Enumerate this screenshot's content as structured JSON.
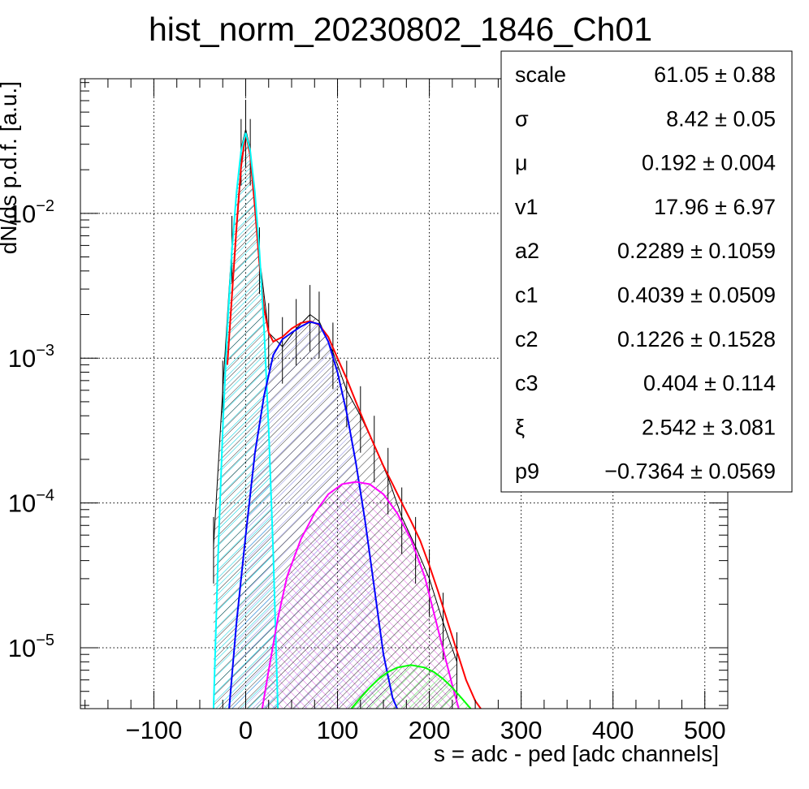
{
  "chart_data": {
    "type": "line",
    "title": "hist_norm_20230802_1846_Ch01",
    "xlabel": "s = adc - ped [adc channels]",
    "ylabel": "dN/ds p.d.f. [a.u.]",
    "xlim": [
      -180,
      525
    ],
    "ylim": [
      3.8e-06,
      0.085
    ],
    "yscale": "log",
    "grid": true,
    "x_ticks": [
      -100,
      0,
      100,
      200,
      300,
      400,
      500
    ],
    "x_tick_labels": [
      "−100",
      "0",
      "100",
      "200",
      "300",
      "400",
      "500"
    ],
    "y_ticks": [
      {
        "value": 1e-05,
        "base": "10",
        "exp": "−5"
      },
      {
        "value": 0.0001,
        "base": "10",
        "exp": "−4"
      },
      {
        "value": 0.001,
        "base": "10",
        "exp": "−3"
      },
      {
        "value": 0.01,
        "base": "10",
        "exp": "−2"
      }
    ],
    "stats_box": {
      "position": "top-right",
      "rows": [
        {
          "name": "scale",
          "value": "61.05 ± 0.88"
        },
        {
          "name": "σ",
          "value": "8.42 ± 0.05"
        },
        {
          "name": "μ",
          "value": "0.192 ± 0.004"
        },
        {
          "name": "v1",
          "value": "17.96 ± 6.97"
        },
        {
          "name": "a2",
          "value": "0.2289 ± 0.1059"
        },
        {
          "name": "c1",
          "value": "0.4039 ± 0.0509"
        },
        {
          "name": "c2",
          "value": "0.1226 ± 0.1528"
        },
        {
          "name": "c3",
          "value": "0.404 ± 0.114"
        },
        {
          "name": "ξ",
          "value": "2.542 ± 3.081"
        },
        {
          "name": "p9",
          "value": "−0.7364 ± 0.0569"
        }
      ]
    },
    "series": [
      {
        "color": "#000000",
        "style": "histogram-errors",
        "x": [
          -35,
          -25,
          -15,
          -5,
          0,
          5,
          15,
          25,
          40,
          55,
          70,
          80,
          95,
          110,
          125,
          140,
          155,
          170,
          185,
          200,
          215,
          230
        ],
        "values": [
          5e-05,
          0.0006,
          0.006,
          0.028,
          0.038,
          0.028,
          0.005,
          0.0015,
          0.0012,
          0.0016,
          0.002,
          0.0018,
          0.0011,
          0.0006,
          0.0004,
          0.00025,
          0.00015,
          8e-05,
          5e-05,
          3e-05,
          1.5e-05,
          8e-06
        ]
      },
      {
        "color": "#ff0000",
        "style": "line",
        "x": [
          -20,
          -10,
          -5,
          0,
          5,
          10,
          15,
          20,
          25,
          30,
          40,
          50,
          60,
          70,
          80,
          90,
          100,
          110,
          120,
          130,
          140,
          150,
          160,
          170,
          180,
          190,
          200,
          210,
          220,
          230,
          240,
          250,
          256
        ],
        "values": [
          0.0009,
          0.008,
          0.021,
          0.036,
          0.025,
          0.011,
          0.0045,
          0.0022,
          0.0015,
          0.0013,
          0.0014,
          0.0016,
          0.00175,
          0.0018,
          0.0017,
          0.0014,
          0.001,
          0.00072,
          0.0005,
          0.00035,
          0.00025,
          0.00018,
          0.000135,
          0.0001,
          7.5e-05,
          5.5e-05,
          3.7e-05,
          2.4e-05,
          1.5e-05,
          9.5e-06,
          6e-06,
          4.3e-06,
          3.8e-06
        ]
      },
      {
        "color": "#00ffff",
        "style": "filled-line",
        "x": [
          -35,
          -30,
          -25,
          -20,
          -15,
          -10,
          -5,
          0,
          5,
          10,
          15,
          20,
          25,
          30,
          35
        ],
        "values": [
          3.8e-06,
          4.5e-05,
          0.00032,
          0.0016,
          0.0055,
          0.014,
          0.027,
          0.036,
          0.027,
          0.014,
          0.0055,
          0.0016,
          0.00032,
          4.5e-05,
          3.8e-06
        ]
      },
      {
        "color": "#0000ff",
        "style": "filled-line",
        "x": [
          -18,
          -10,
          0,
          10,
          20,
          30,
          40,
          50,
          60,
          70,
          80,
          90,
          100,
          110,
          120,
          130,
          140,
          150,
          160,
          165
        ],
        "values": [
          3.8e-06,
          1.5e-05,
          6e-05,
          0.00022,
          0.00055,
          0.00105,
          0.00135,
          0.0015,
          0.00165,
          0.00178,
          0.00172,
          0.0013,
          0.0008,
          0.00042,
          0.00019,
          7.5e-05,
          2.6e-05,
          9e-06,
          4.5e-06,
          3.8e-06
        ]
      },
      {
        "color": "#ff00ff",
        "style": "filled-line",
        "x": [
          18,
          25,
          35,
          45,
          60,
          75,
          90,
          105,
          120,
          135,
          150,
          165,
          180,
          195,
          210,
          225,
          232
        ],
        "values": [
          3.8e-06,
          7e-06,
          1.6e-05,
          3.1e-05,
          5.6e-05,
          8.5e-05,
          0.000115,
          0.000135,
          0.00014,
          0.000135,
          0.000115,
          8.5e-05,
          5.6e-05,
          3.1e-05,
          1.3e-05,
          5.5e-06,
          3.8e-06
        ]
      },
      {
        "color": "#00ff00",
        "style": "filled-line",
        "x": [
          115,
          125,
          135,
          145,
          155,
          165,
          180,
          195,
          205,
          215,
          225,
          235,
          245
        ],
        "values": [
          3.8e-06,
          4.5e-06,
          5.3e-06,
          6.1e-06,
          6.8e-06,
          7.3e-06,
          7.6e-06,
          7.3e-06,
          6.8e-06,
          6.1e-06,
          5.3e-06,
          4.5e-06,
          3.8e-06
        ]
      }
    ]
  }
}
